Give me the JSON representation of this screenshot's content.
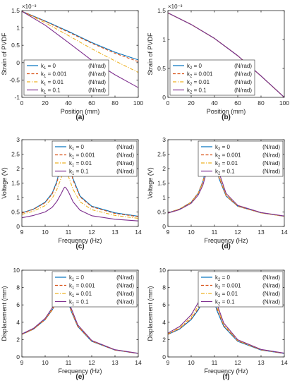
{
  "figure": {
    "background": "#ffffff",
    "axis_color": "#262626",
    "text_color": "#262626"
  },
  "chart_data": [
    {
      "id": "a",
      "caption": "(a)",
      "type": "line",
      "xlabel": "Position (mm)",
      "ylabel": "Strain of PVDF",
      "xlim": [
        0,
        100
      ],
      "ylim": [
        -1.0,
        1.5
      ],
      "exponent": "×10⁻³",
      "xticks": [
        0,
        20,
        40,
        60,
        80,
        100
      ],
      "yticks": [
        -1,
        -0.5,
        0,
        0.5,
        1,
        1.5
      ],
      "ytick_labels": [
        "-1",
        "-0.5",
        "0",
        "0.5",
        "1",
        "1.5"
      ],
      "legend": {
        "position": "bottom-left",
        "symbol": "k",
        "subscript": "1",
        "unit": "(N/rad)"
      },
      "x": [
        0,
        20,
        40,
        60,
        80,
        100
      ],
      "series": [
        {
          "name": "= 0",
          "color": "#0072bd",
          "dash": "solid",
          "values": [
            1.48,
            1.2,
            0.9,
            0.58,
            0.3,
            0.08
          ]
        },
        {
          "name": "= 0.001",
          "color": "#d95319",
          "dash": "dash",
          "values": [
            1.48,
            1.19,
            0.88,
            0.56,
            0.27,
            0.03
          ]
        },
        {
          "name": "= 0.01",
          "color": "#edb120",
          "dash": "dashdot",
          "values": [
            1.48,
            1.15,
            0.78,
            0.4,
            0.05,
            -0.28
          ]
        },
        {
          "name": "= 0.1",
          "color": "#7e2f8e",
          "dash": "solid",
          "values": [
            1.48,
            1.08,
            0.58,
            0.07,
            -0.35,
            -0.72
          ]
        }
      ]
    },
    {
      "id": "b",
      "caption": "(b)",
      "type": "line",
      "xlabel": "Position (mm)",
      "ylabel": "Strain of PVDF",
      "xlim": [
        0,
        100
      ],
      "ylim": [
        0,
        1.5
      ],
      "exponent": "×10⁻³",
      "xticks": [
        0,
        20,
        40,
        60,
        80,
        100
      ],
      "yticks": [
        0,
        0.5,
        1,
        1.5
      ],
      "ytick_labels": [
        "0",
        "0.5",
        "1",
        "1.5"
      ],
      "legend": {
        "position": "bottom-left",
        "symbol": "k",
        "subscript": "2",
        "unit": "(N/rad)"
      },
      "x": [
        0,
        20,
        40,
        60,
        80,
        100
      ],
      "series": [
        {
          "name": "= 0",
          "color": "#0072bd",
          "dash": "solid",
          "values": [
            1.46,
            1.26,
            1.02,
            0.72,
            0.37,
            0.0
          ]
        },
        {
          "name": "= 0.001",
          "color": "#d95319",
          "dash": "dash",
          "values": [
            1.46,
            1.26,
            1.02,
            0.72,
            0.37,
            0.0
          ]
        },
        {
          "name": "= 0.01",
          "color": "#edb120",
          "dash": "dashdot",
          "values": [
            1.46,
            1.26,
            1.02,
            0.72,
            0.37,
            0.0
          ]
        },
        {
          "name": "= 0.1",
          "color": "#7e2f8e",
          "dash": "solid",
          "values": [
            1.46,
            1.26,
            1.02,
            0.72,
            0.37,
            0.0
          ]
        }
      ]
    },
    {
      "id": "c",
      "caption": "(c)",
      "type": "line",
      "xlabel": "Frequency (Hz)",
      "ylabel": "Voltage (V)",
      "xlim": [
        9,
        14
      ],
      "ylim": [
        0,
        3
      ],
      "xticks": [
        9,
        10,
        11,
        12,
        13,
        14
      ],
      "yticks": [
        0,
        0.5,
        1,
        1.5,
        2,
        2.5,
        3
      ],
      "ytick_labels": [
        "0",
        "0.5",
        "1",
        "1.5",
        "2",
        "2.5",
        "3"
      ],
      "legend": {
        "position": "top-right",
        "symbol": "k",
        "subscript": "1",
        "unit": "(N/rad)"
      },
      "x": [
        9,
        9.5,
        10,
        10.3,
        10.5,
        10.7,
        10.8,
        10.85,
        10.9,
        11,
        11.2,
        11.5,
        12,
        13,
        14
      ],
      "series": [
        {
          "name": "= 0",
          "color": "#0072bd",
          "dash": "solid",
          "values": [
            0.47,
            0.6,
            0.84,
            1.15,
            1.55,
            2.2,
            2.5,
            2.55,
            2.52,
            2.3,
            1.65,
            1.05,
            0.7,
            0.47,
            0.35
          ]
        },
        {
          "name": "= 0.001",
          "color": "#d95319",
          "dash": "dash",
          "values": [
            0.46,
            0.59,
            0.82,
            1.12,
            1.5,
            2.13,
            2.42,
            2.47,
            2.44,
            2.23,
            1.6,
            1.02,
            0.68,
            0.45,
            0.34
          ]
        },
        {
          "name": "= 0.01",
          "color": "#edb120",
          "dash": "dashdot",
          "values": [
            0.42,
            0.53,
            0.72,
            0.97,
            1.27,
            1.7,
            1.9,
            1.93,
            1.9,
            1.73,
            1.28,
            0.85,
            0.58,
            0.38,
            0.28
          ]
        },
        {
          "name": "= 0.1",
          "color": "#7e2f8e",
          "dash": "solid",
          "values": [
            0.3,
            0.38,
            0.5,
            0.66,
            0.86,
            1.15,
            1.32,
            1.36,
            1.33,
            1.2,
            0.85,
            0.56,
            0.37,
            0.25,
            0.19
          ]
        }
      ]
    },
    {
      "id": "d",
      "caption": "(d)",
      "type": "line",
      "xlabel": "Frequency (Hz)",
      "ylabel": "Voltage (V)",
      "xlim": [
        9,
        14
      ],
      "ylim": [
        0,
        3
      ],
      "xticks": [
        9,
        10,
        11,
        12,
        13,
        14
      ],
      "yticks": [
        0,
        0.5,
        1,
        1.5,
        2,
        2.5,
        3
      ],
      "ytick_labels": [
        "0",
        "0.5",
        "1",
        "1.5",
        "2",
        "2.5",
        "3"
      ],
      "legend": {
        "position": "top-right",
        "symbol": "k",
        "subscript": "2",
        "unit": "(N/rad)"
      },
      "x": [
        9,
        9.5,
        10,
        10.3,
        10.5,
        10.7,
        10.8,
        10.85,
        10.9,
        11,
        11.2,
        11.5,
        12,
        13,
        14
      ],
      "series": [
        {
          "name": "= 0",
          "color": "#0072bd",
          "dash": "solid",
          "values": [
            0.47,
            0.6,
            0.84,
            1.15,
            1.55,
            2.2,
            2.5,
            2.55,
            2.52,
            2.3,
            1.65,
            1.05,
            0.7,
            0.47,
            0.35
          ]
        },
        {
          "name": "= 0.001",
          "color": "#d95319",
          "dash": "dash",
          "values": [
            0.47,
            0.6,
            0.84,
            1.15,
            1.54,
            2.18,
            2.48,
            2.55,
            2.53,
            2.32,
            1.68,
            1.06,
            0.7,
            0.47,
            0.35
          ]
        },
        {
          "name": "= 0.01",
          "color": "#edb120",
          "dash": "dashdot",
          "values": [
            0.47,
            0.6,
            0.83,
            1.13,
            1.5,
            2.12,
            2.43,
            2.53,
            2.55,
            2.38,
            1.74,
            1.09,
            0.71,
            0.47,
            0.35
          ]
        },
        {
          "name": "= 0.1",
          "color": "#7e2f8e",
          "dash": "solid",
          "values": [
            0.46,
            0.58,
            0.8,
            1.08,
            1.42,
            2.0,
            2.33,
            2.47,
            2.54,
            2.47,
            1.85,
            1.14,
            0.73,
            0.48,
            0.36
          ]
        }
      ]
    },
    {
      "id": "e",
      "caption": "(e)",
      "type": "line",
      "xlabel": "Frequency (Hz)",
      "ylabel": "Displacement (mm)",
      "xlim": [
        9,
        14
      ],
      "ylim": [
        0,
        10
      ],
      "xticks": [
        9,
        10,
        11,
        12,
        13,
        14
      ],
      "yticks": [
        0,
        2,
        4,
        6,
        8,
        10
      ],
      "ytick_labels": [
        "0",
        "2",
        "4",
        "6",
        "8",
        "10"
      ],
      "legend": {
        "position": "top-right",
        "symbol": "k",
        "subscript": "1",
        "unit": "(N/rad)"
      },
      "x": [
        9,
        9.5,
        10,
        10.3,
        10.5,
        10.65,
        10.75,
        10.8,
        10.85,
        10.95,
        11.1,
        11.4,
        12,
        13,
        14
      ],
      "series": [
        {
          "name": "= 0",
          "color": "#0072bd",
          "dash": "solid",
          "values": [
            2.6,
            3.2,
            4.3,
            5.4,
            6.4,
            7.2,
            7.6,
            7.65,
            7.5,
            6.8,
            5.4,
            3.5,
            1.8,
            0.8,
            0.4
          ]
        },
        {
          "name": "= 0.001",
          "color": "#d95319",
          "dash": "dash",
          "values": [
            2.6,
            3.2,
            4.3,
            5.4,
            6.42,
            7.25,
            7.65,
            7.7,
            7.55,
            6.85,
            5.45,
            3.52,
            1.82,
            0.8,
            0.4
          ]
        },
        {
          "name": "= 0.01",
          "color": "#edb120",
          "dash": "dashdot",
          "values": [
            2.62,
            3.25,
            4.38,
            5.52,
            6.6,
            7.5,
            7.9,
            7.95,
            7.8,
            7.05,
            5.6,
            3.6,
            1.85,
            0.82,
            0.41
          ]
        },
        {
          "name": "= 0.1",
          "color": "#7e2f8e",
          "dash": "solid",
          "values": [
            2.65,
            3.3,
            4.45,
            5.65,
            6.8,
            7.75,
            8.15,
            8.25,
            8.1,
            7.3,
            5.75,
            3.7,
            1.9,
            0.84,
            0.42
          ]
        }
      ]
    },
    {
      "id": "f",
      "caption": "(f)",
      "type": "line",
      "xlabel": "Frequency (Hz)",
      "ylabel": "Displacement (mm)",
      "xlim": [
        9,
        14
      ],
      "ylim": [
        0,
        10
      ],
      "xticks": [
        9,
        10,
        11,
        12,
        13,
        14
      ],
      "yticks": [
        0,
        2,
        4,
        6,
        8,
        10
      ],
      "ytick_labels": [
        "0",
        "2",
        "4",
        "6",
        "8",
        "10"
      ],
      "legend": {
        "position": "top-right",
        "symbol": "k",
        "subscript": "2",
        "unit": "(N/rad)"
      },
      "x": [
        9,
        9.5,
        10,
        10.3,
        10.5,
        10.65,
        10.75,
        10.8,
        10.85,
        10.95,
        11.1,
        11.4,
        12,
        13,
        14
      ],
      "series": [
        {
          "name": "= 0",
          "color": "#0072bd",
          "dash": "solid",
          "values": [
            2.6,
            3.2,
            4.3,
            5.4,
            6.4,
            7.2,
            7.6,
            7.65,
            7.5,
            6.8,
            5.4,
            3.5,
            1.8,
            0.8,
            0.4
          ]
        },
        {
          "name": "= 0.001",
          "color": "#d95319",
          "dash": "dash",
          "values": [
            2.62,
            3.25,
            4.4,
            5.55,
            6.65,
            7.55,
            7.95,
            8.0,
            7.85,
            7.1,
            5.6,
            3.6,
            1.85,
            0.82,
            0.41
          ]
        },
        {
          "name": "= 0.01",
          "color": "#edb120",
          "dash": "dashdot",
          "values": [
            2.68,
            3.35,
            4.6,
            5.85,
            7.05,
            8.0,
            8.4,
            8.45,
            8.25,
            7.45,
            5.85,
            3.72,
            1.9,
            0.84,
            0.42
          ]
        },
        {
          "name": "= 0.1",
          "color": "#7e2f8e",
          "dash": "solid",
          "values": [
            2.75,
            3.5,
            4.85,
            6.25,
            7.6,
            8.6,
            9.0,
            9.05,
            8.8,
            7.9,
            6.15,
            3.9,
            1.98,
            0.87,
            0.44
          ]
        }
      ]
    }
  ]
}
